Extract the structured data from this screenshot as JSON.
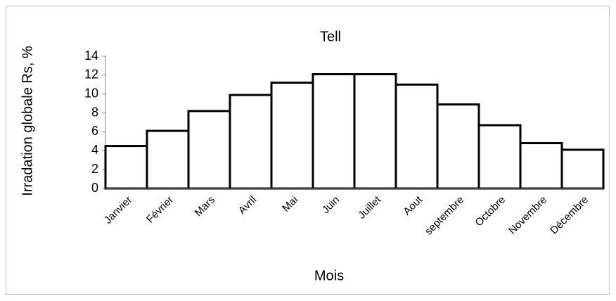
{
  "chart_data": {
    "type": "bar",
    "title": "Tell",
    "xlabel": "Mois",
    "ylabel": "Irradation globale Rs, %",
    "categories": [
      "Janvier",
      "Février",
      "Mars",
      "Avril",
      "Mai",
      "Juin",
      "Juillet",
      "Aout",
      "septembre",
      "Octobre",
      "Novembre",
      "Décembre"
    ],
    "values": [
      4.5,
      6.1,
      8.2,
      9.9,
      11.2,
      12.1,
      12.1,
      11.0,
      8.9,
      6.7,
      4.8,
      4.1
    ],
    "color": "#ffffff",
    "edgecolor": "#000000",
    "ylim": [
      0,
      14
    ],
    "yticks": [
      0,
      2,
      4,
      6,
      8,
      10,
      12,
      14
    ],
    "grid": false
  }
}
